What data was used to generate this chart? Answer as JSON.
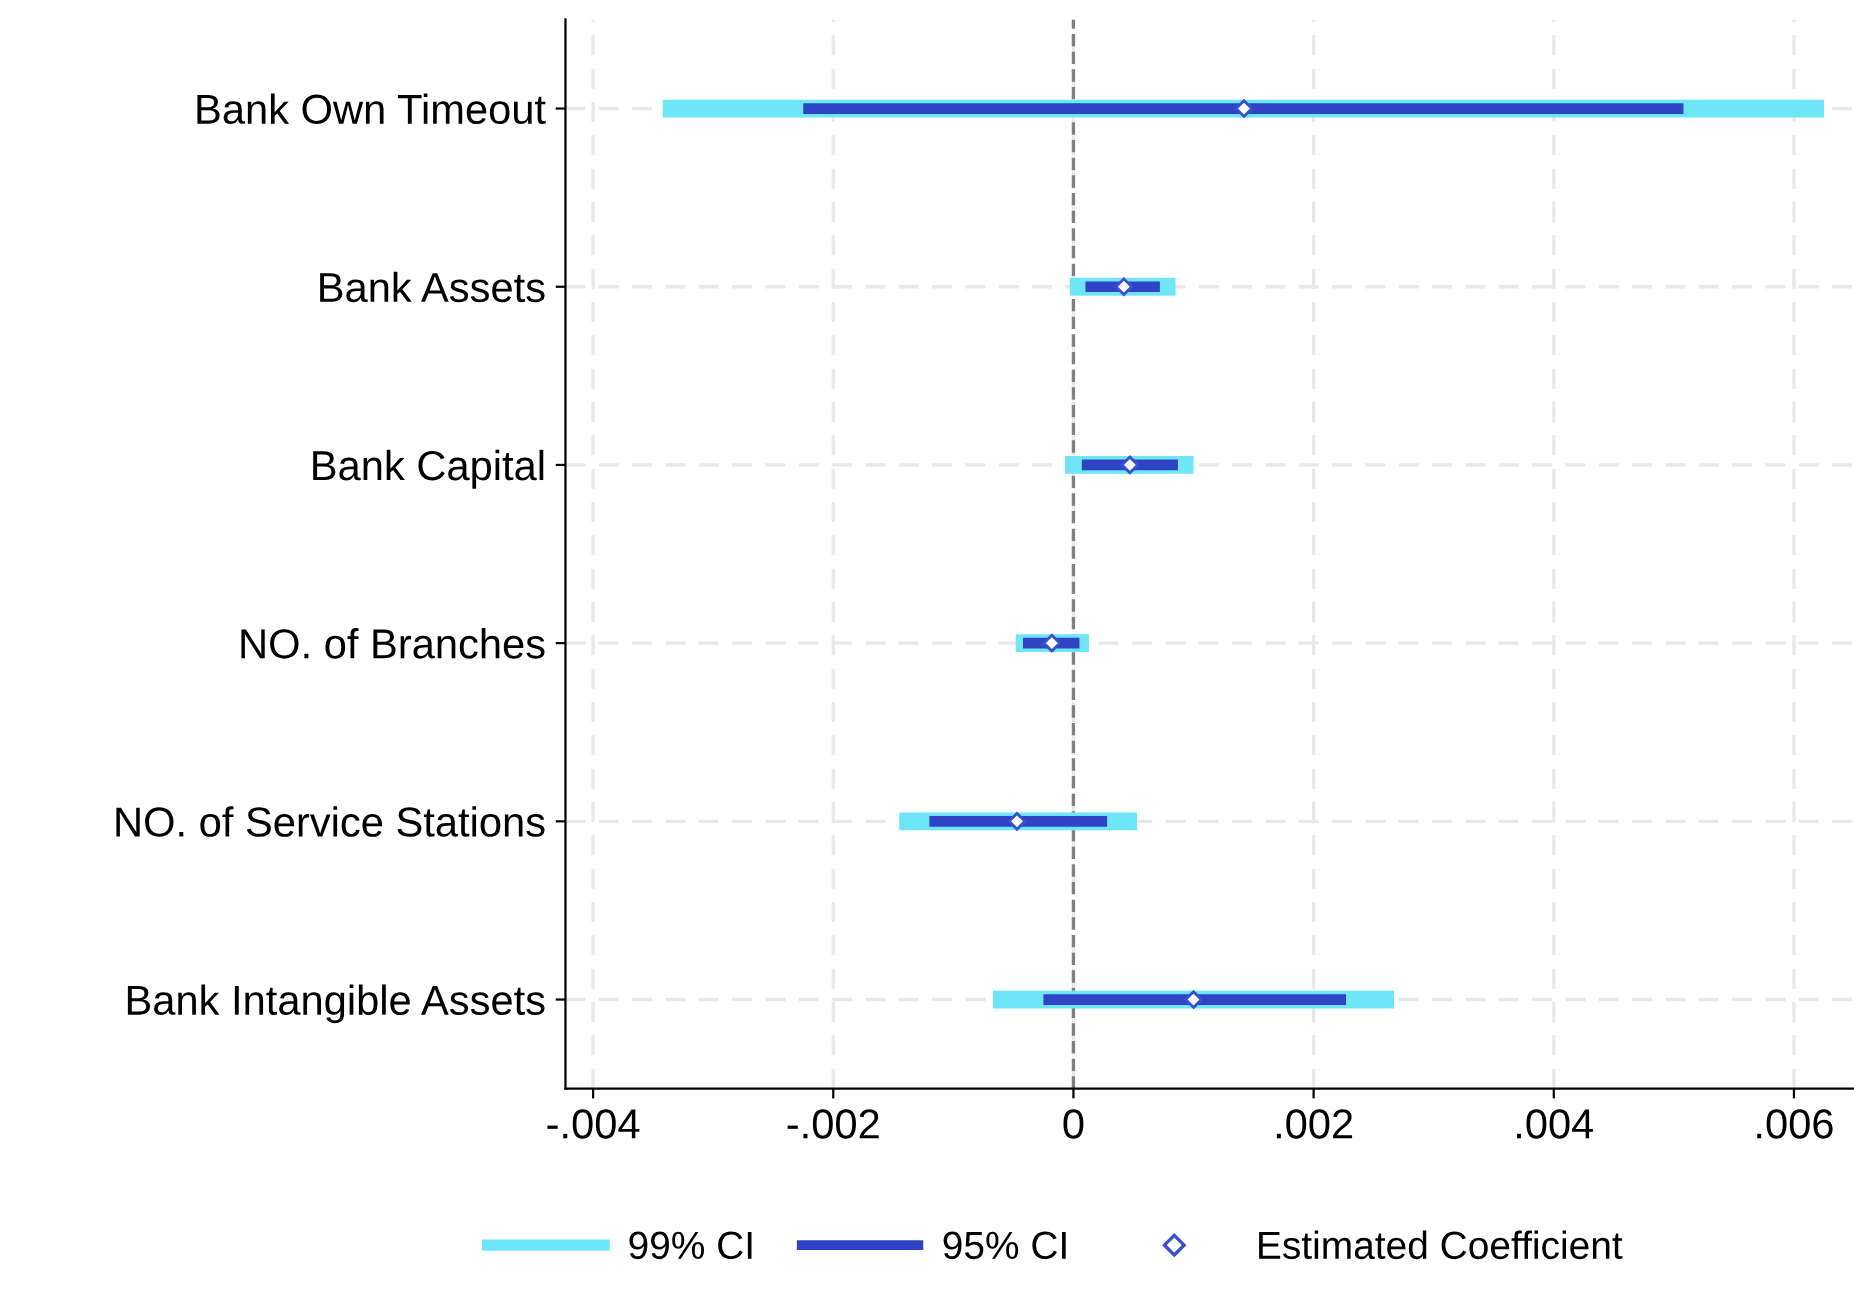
{
  "chart_data": {
    "type": "bar",
    "orientation": "horizontal",
    "categories": [
      "Bank Own Timeout",
      "Bank Assets",
      "Bank Capital",
      "NO. of Branches",
      "NO. of Service Stations",
      "Bank Intangible Assets"
    ],
    "series": [
      {
        "name": "99% CI",
        "color": "#6ee6f7",
        "base": [
          -0.00342,
          -3e-05,
          -7e-05,
          -0.00048,
          -0.00145,
          -0.00067
        ],
        "values": [
          0.00967,
          0.00088,
          0.00107,
          0.00061,
          0.00198,
          0.00334
        ]
      },
      {
        "name": "95% CI",
        "color": "#2e44c4",
        "base": [
          -0.00225,
          0.0001,
          7e-05,
          -0.00042,
          -0.0012,
          -0.00025
        ],
        "values": [
          0.00733,
          0.00062,
          0.0008,
          0.00047,
          0.00148,
          0.00252
        ]
      },
      {
        "name": "Estimated Coefficient",
        "type": "scatter",
        "marker": "diamond",
        "color": "#3a4fd0",
        "x": [
          "Bank Own Timeout",
          "Bank Assets",
          "Bank Capital",
          "NO. of Branches",
          "NO. of Service Stations",
          "Bank Intangible Assets"
        ],
        "values": [
          0.00142,
          0.00042,
          0.00047,
          -0.00018,
          -0.00047,
          0.001
        ]
      }
    ],
    "xlim": [
      -0.00423,
      0.0065
    ],
    "xticks": [
      {
        "value": -0.004,
        "label": "-.004"
      },
      {
        "value": -0.002,
        "label": "-.002"
      },
      0,
      {
        "value": 0.002,
        "label": ".002"
      },
      {
        "value": 0.004,
        "label": ".004"
      },
      {
        "value": 0.006,
        "label": ".006"
      }
    ],
    "ref_lines": [
      {
        "axis": "x",
        "value": 0,
        "color": "#808080",
        "line_style": "dashed"
      }
    ],
    "grid": true,
    "legend": "bottom"
  }
}
